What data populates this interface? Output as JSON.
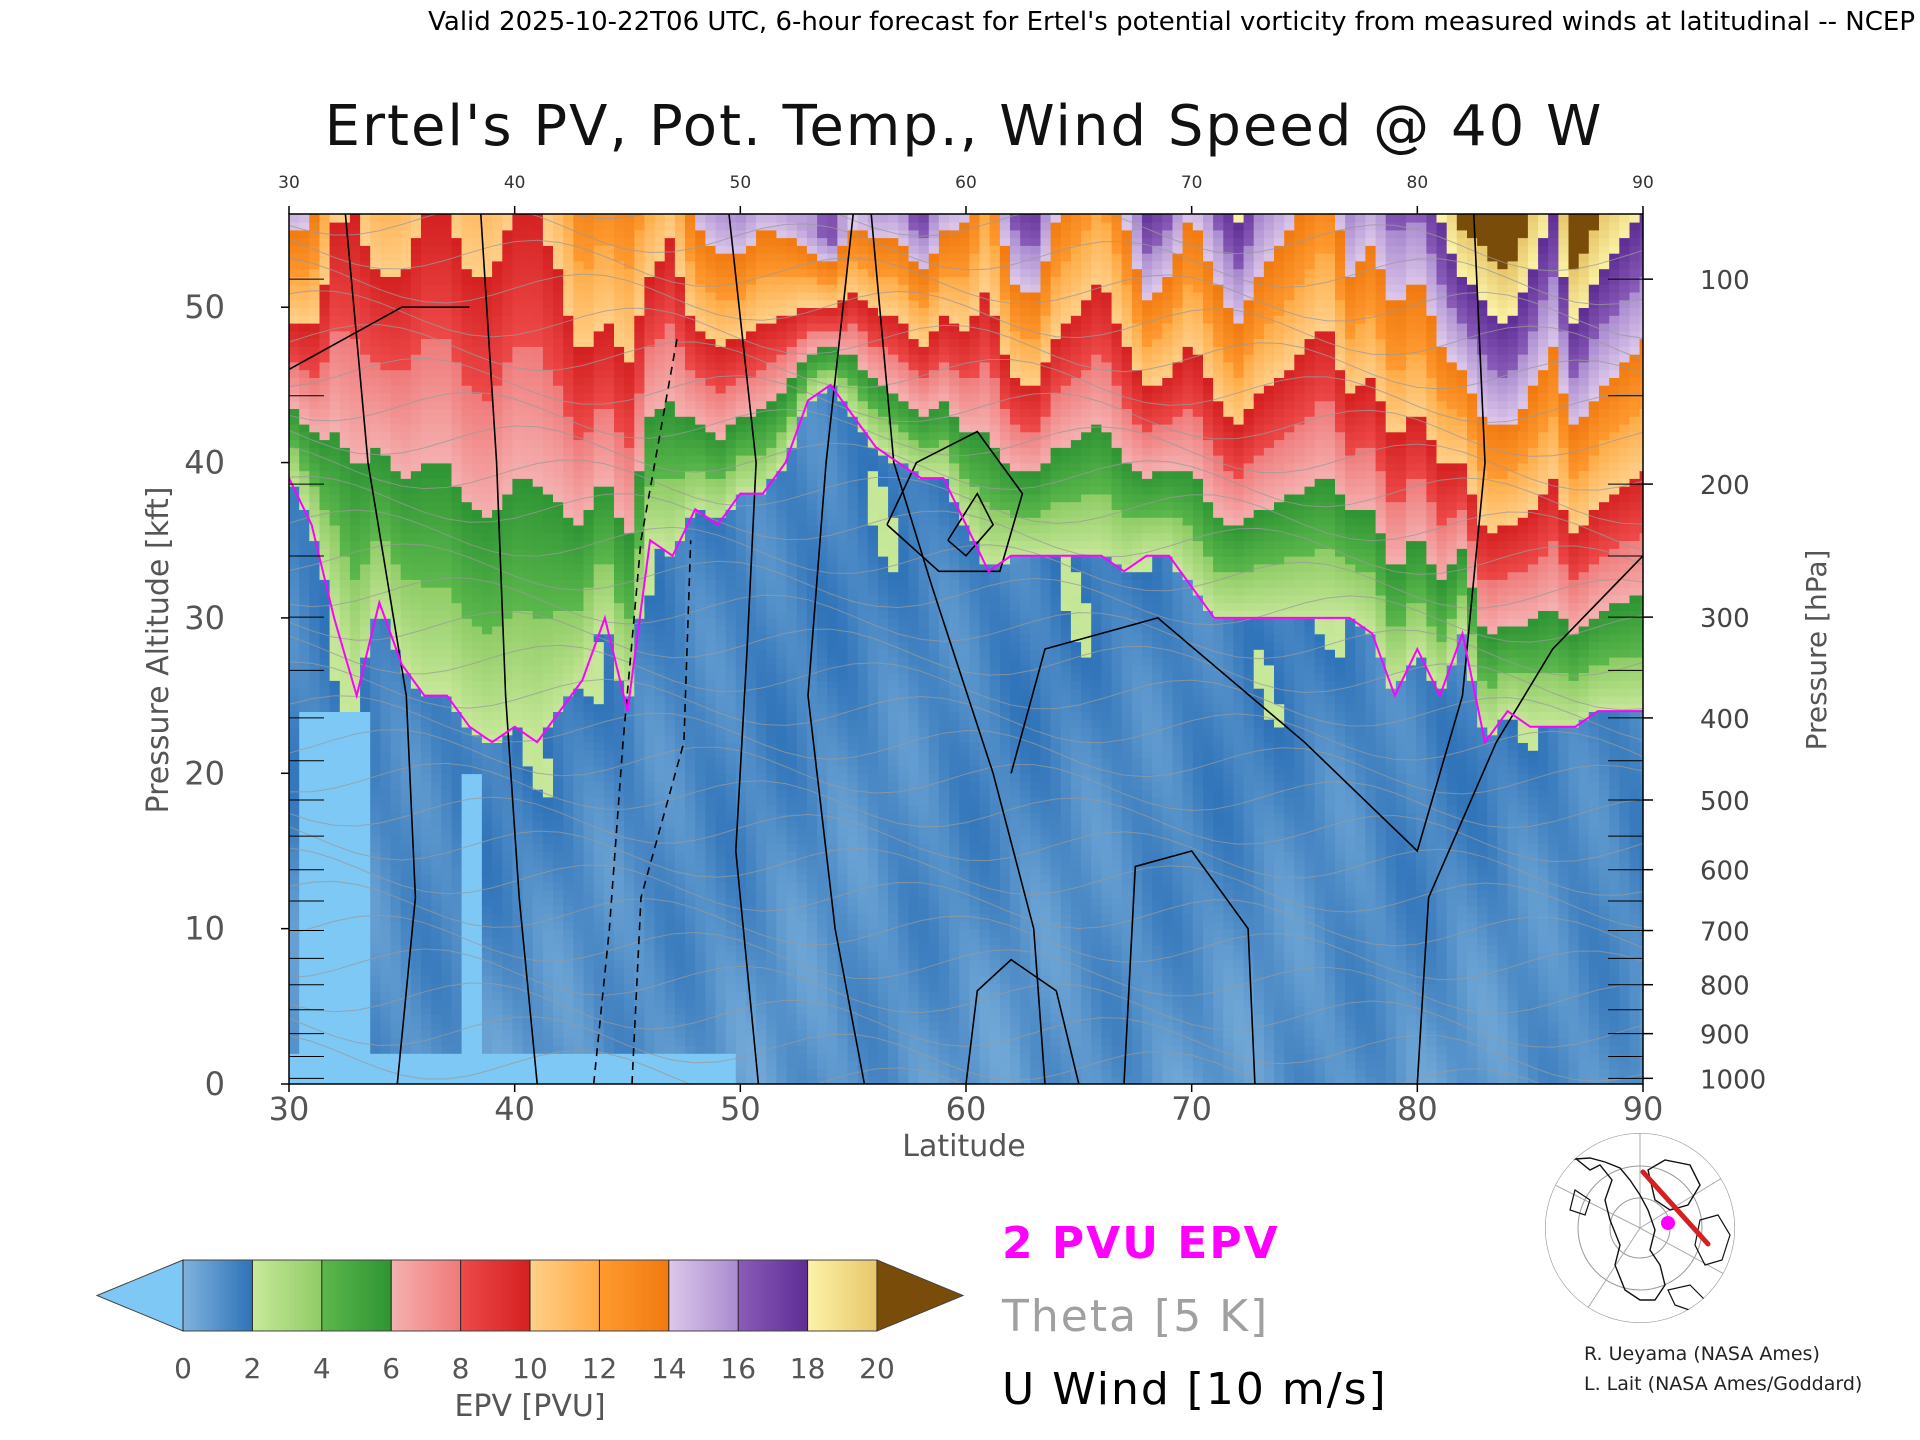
{
  "header": {
    "top_line": "Valid 2025-10-22T06 UTC, 6-hour forecast for Ertel's potential vorticity from measured winds at latitudinal -- NCEP"
  },
  "chart_data": {
    "type": "heatmap",
    "title": "Ertel's PV, Pot. Temp., Wind Speed @ 40 W",
    "xlabel": "Latitude",
    "ylabel_left": "Pressure Altitude [kft]",
    "ylabel_right": "Pressure [hPa]",
    "xlim": [
      30,
      90
    ],
    "ylim_kft": [
      0,
      56
    ],
    "x_ticks": [
      "30",
      "40",
      "50",
      "60",
      "70",
      "80",
      "90"
    ],
    "y_ticks_kft": [
      "0",
      "10",
      "20",
      "30",
      "40",
      "50"
    ],
    "pressure_ticks_hPa": [
      "1000",
      "900",
      "800",
      "700",
      "600",
      "500",
      "400",
      "300",
      "200",
      "100"
    ],
    "grid": false,
    "colorbar": {
      "label": "EPV [PVU]",
      "ticks": [
        "0",
        "2",
        "4",
        "6",
        "8",
        "10",
        "12",
        "14",
        "16",
        "18",
        "20"
      ],
      "under_color": "#7ec8f5",
      "over_color": "#7a4c0a",
      "bins": [
        {
          "from": 0,
          "to": 2,
          "colors": [
            "#7fb3dd",
            "#2e72b8"
          ]
        },
        {
          "from": 2,
          "to": 4,
          "colors": [
            "#c8e89a",
            "#8fcc66"
          ]
        },
        {
          "from": 4,
          "to": 6,
          "colors": [
            "#5cb84c",
            "#2e9434"
          ]
        },
        {
          "from": 6,
          "to": 8,
          "colors": [
            "#f5b0b0",
            "#f07a7a"
          ]
        },
        {
          "from": 8,
          "to": 10,
          "colors": [
            "#ee4a4a",
            "#d42020"
          ]
        },
        {
          "from": 10,
          "to": 12,
          "colors": [
            "#ffd08a",
            "#ffaa44"
          ]
        },
        {
          "from": 12,
          "to": 14,
          "colors": [
            "#ff9a30",
            "#f07a10"
          ]
        },
        {
          "from": 14,
          "to": 16,
          "colors": [
            "#ddc8ea",
            "#a98ad0"
          ]
        },
        {
          "from": 16,
          "to": 18,
          "colors": [
            "#8a5cb8",
            "#5e2d95"
          ]
        },
        {
          "from": 18,
          "to": 20,
          "colors": [
            "#fbf3a8",
            "#e8c66a"
          ]
        }
      ]
    },
    "legend": [
      {
        "label": "2 PVU EPV",
        "color": "#ff00ff"
      },
      {
        "label": "Theta [5 K]",
        "color": "#a0a0a0"
      },
      {
        "label": "U Wind [10 m/s]",
        "color": "#000000"
      }
    ],
    "tropopause_2pvu_kft": {
      "lat": [
        30,
        31,
        32,
        33,
        34,
        35,
        36,
        37,
        38,
        39,
        40,
        41,
        42,
        43,
        44,
        45,
        46,
        47,
        48,
        49,
        50,
        51,
        52,
        53,
        54,
        55,
        56,
        57,
        58,
        59,
        60,
        61,
        62,
        63,
        64,
        65,
        66,
        67,
        68,
        69,
        70,
        71,
        72,
        73,
        74,
        75,
        76,
        77,
        78,
        79,
        80,
        81,
        82,
        83,
        84,
        85,
        86,
        87,
        88,
        89,
        90
      ],
      "kft": [
        39,
        36,
        30,
        25,
        31,
        27,
        25,
        25,
        23,
        22,
        23,
        22,
        24,
        26,
        30,
        24,
        35,
        34,
        37,
        36,
        38,
        38,
        40,
        44,
        45,
        43,
        41,
        40,
        39,
        39,
        36,
        33,
        34,
        34,
        34,
        34,
        34,
        33,
        34,
        34,
        32,
        30,
        30,
        30,
        30,
        30,
        30,
        30,
        29,
        25,
        28,
        25,
        29,
        22,
        24,
        23,
        23,
        23,
        24,
        24,
        24
      ]
    },
    "pv_upper_band_pvu": {
      "lat": [
        30,
        31,
        32,
        33,
        34,
        35,
        36,
        37,
        38,
        39,
        40,
        41,
        42,
        43,
        44,
        45,
        46,
        47,
        48,
        49,
        50,
        51,
        52,
        53,
        54,
        55,
        56,
        57,
        58,
        59,
        60,
        61,
        62,
        63,
        64,
        65,
        66,
        67,
        68,
        69,
        70,
        71,
        72,
        73,
        74,
        75,
        76,
        77,
        78,
        79,
        80,
        81,
        82,
        83,
        84,
        85,
        86,
        87,
        88,
        89,
        90
      ],
      "pvu_at_52kft": [
        12,
        12,
        9,
        9,
        10,
        10,
        9,
        9,
        10,
        10,
        9,
        9,
        10,
        12,
        11,
        12,
        10,
        9,
        12,
        13,
        13,
        12,
        12,
        12,
        13,
        11,
        12,
        12,
        14,
        12,
        12,
        10,
        14,
        15,
        12,
        11,
        10,
        12,
        15,
        14,
        12,
        14,
        16,
        14,
        13,
        12,
        11,
        14,
        13,
        15,
        14,
        16,
        18,
        19,
        20,
        18,
        16,
        20,
        18,
        17,
        16
      ]
    }
  },
  "credits": {
    "line1": "R. Ueyama (NASA Ames)",
    "line2": "L. Lait (NASA Ames/Goddard)"
  },
  "inset_map": {
    "track_color": "#d42020",
    "marker_color": "#ff00ff"
  }
}
